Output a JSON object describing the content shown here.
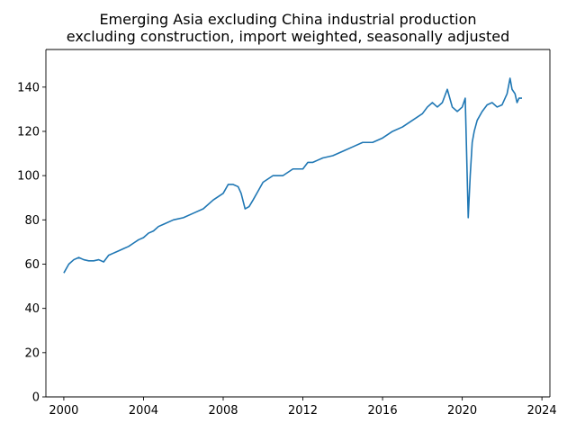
{
  "chart_data": {
    "type": "line",
    "title": "Emerging Asia excluding China industrial production",
    "subtitle": "excluding construction, import weighted, seasonally adjusted",
    "xlabel": "",
    "ylabel": "",
    "xlim": [
      1999.1,
      2024.4
    ],
    "ylim": [
      0,
      157
    ],
    "x_ticks": [
      2000,
      2004,
      2008,
      2012,
      2016,
      2020,
      2024
    ],
    "x_tick_labels": [
      "2000",
      "2004",
      "2008",
      "2012",
      "2016",
      "2020",
      "2024"
    ],
    "y_ticks": [
      0,
      20,
      40,
      60,
      80,
      100,
      120,
      140
    ],
    "y_tick_labels": [
      "0",
      "20",
      "40",
      "60",
      "80",
      "100",
      "120",
      "140"
    ],
    "grid": false,
    "legend": "none",
    "series": [
      {
        "color": "#1f77b4",
        "x": [
          2000.0,
          2000.25,
          2000.5,
          2000.75,
          2001.0,
          2001.25,
          2001.5,
          2001.75,
          2002.0,
          2002.25,
          2002.5,
          2002.75,
          2003.0,
          2003.25,
          2003.5,
          2003.75,
          2004.0,
          2004.25,
          2004.5,
          2004.75,
          2005.0,
          2005.5,
          2006.0,
          2006.5,
          2007.0,
          2007.5,
          2008.0,
          2008.25,
          2008.5,
          2008.75,
          2008.9,
          2009.1,
          2009.3,
          2009.5,
          2009.75,
          2010.0,
          2010.5,
          2011.0,
          2011.5,
          2012.0,
          2012.25,
          2012.5,
          2012.75,
          2013.0,
          2013.5,
          2014.0,
          2014.5,
          2015.0,
          2015.5,
          2016.0,
          2016.5,
          2017.0,
          2017.5,
          2018.0,
          2018.25,
          2018.5,
          2018.75,
          2019.0,
          2019.25,
          2019.5,
          2019.75,
          2020.0,
          2020.15,
          2020.3,
          2020.4,
          2020.5,
          2020.6,
          2020.75,
          2021.0,
          2021.25,
          2021.5,
          2021.75,
          2022.0,
          2022.25,
          2022.4,
          2022.5,
          2022.65,
          2022.75,
          2022.85,
          2023.0
        ],
        "y": [
          56,
          60,
          62,
          63,
          62,
          61.5,
          61.5,
          62,
          61,
          64,
          65,
          66,
          67,
          68,
          69.5,
          71,
          72,
          74,
          75,
          77,
          78,
          80,
          81,
          83,
          85,
          89,
          92,
          96,
          96,
          95,
          92,
          85,
          86,
          89,
          93,
          97,
          100,
          100,
          103,
          103,
          106,
          106,
          107,
          108,
          109,
          111,
          113,
          115,
          115,
          117,
          120,
          122,
          125,
          128,
          131,
          133,
          131,
          133,
          139,
          131,
          129,
          131,
          135,
          81,
          100,
          115,
          120,
          125,
          129,
          132,
          133,
          131,
          132,
          137,
          144,
          139,
          137,
          133,
          135,
          135
        ]
      }
    ]
  }
}
